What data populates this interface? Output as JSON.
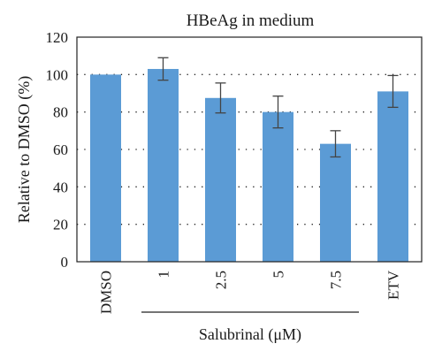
{
  "chart_data": {
    "type": "bar",
    "title": "HBeAg in medium",
    "ylabel": "Relative to DMSO (%)",
    "ylim": [
      0,
      120
    ],
    "yticks": [
      "0",
      "20",
      "40",
      "60",
      "80",
      "100",
      "120"
    ],
    "categories": [
      "DMSO",
      "1",
      "2.5",
      "5",
      "7.5",
      "ETV"
    ],
    "values": [
      100,
      103,
      87.5,
      80,
      63,
      91
    ],
    "errors": [
      0,
      6,
      8,
      8.5,
      7,
      8.5
    ],
    "group_label": "Salubrinal (μM)",
    "grid": "horizontal dotted",
    "colors": {
      "bar": "#5b9bd5",
      "error": "#444444"
    }
  }
}
